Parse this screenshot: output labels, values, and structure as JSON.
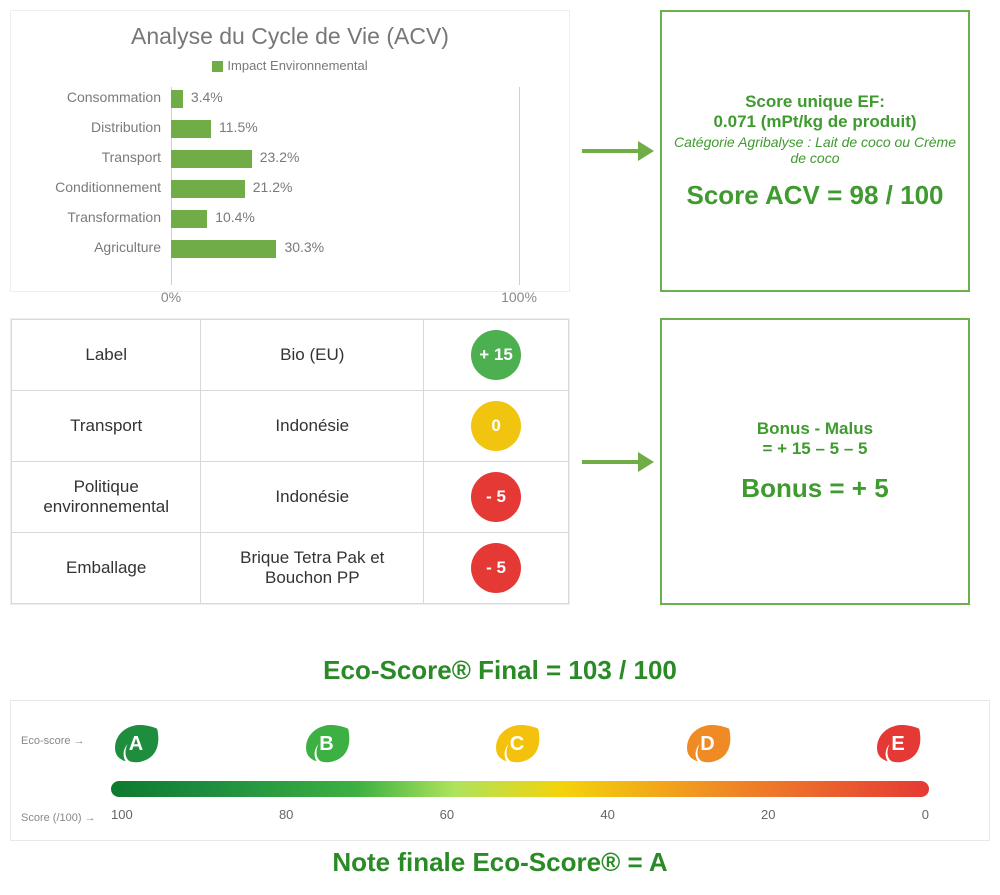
{
  "chart": {
    "title": "Analyse du Cycle de Vie (ACV)",
    "legend_label": "Impact Environnemental",
    "bar_color": "#70ad47",
    "label_color": "#7a7a7a",
    "xmin_label": "0%",
    "xmax_label": "100%",
    "xlim": [
      0,
      100
    ],
    "bars": [
      {
        "label": "Consommation",
        "value": 3.4,
        "value_label": "3.4%"
      },
      {
        "label": "Distribution",
        "value": 11.5,
        "value_label": "11.5%"
      },
      {
        "label": "Transport",
        "value": 23.2,
        "value_label": "23.2%"
      },
      {
        "label": "Conditionnement",
        "value": 21.2,
        "value_label": "21.2%"
      },
      {
        "label": "Transformation",
        "value": 10.4,
        "value_label": "10.4%"
      },
      {
        "label": "Agriculture",
        "value": 30.3,
        "value_label": "30.3%"
      }
    ]
  },
  "score_box": {
    "line1": "Score unique EF:",
    "line2": "0.071 (mPt/kg de produit)",
    "line3": "Catégorie Agribalyse : Lait de coco ou Crème de coco",
    "big": "Score ACV = 98 / 100",
    "border_color": "#6ab04c",
    "text_color": "#3f9a2f"
  },
  "criteria": {
    "rows": [
      {
        "name": "Label",
        "value": "Bio (EU)",
        "score_label": "+ 15",
        "chip_color": "#4caf50"
      },
      {
        "name": "Transport",
        "value": "Indonésie",
        "score_label": "0",
        "chip_color": "#f1c40f"
      },
      {
        "name": "Politique environnemental",
        "value": "Indonésie",
        "score_label": "- 5",
        "chip_color": "#e53935"
      },
      {
        "name": "Emballage",
        "value": "Brique Tetra Pak et Bouchon PP",
        "score_label": "- 5",
        "chip_color": "#e53935"
      }
    ]
  },
  "bonus_box": {
    "l1": "Bonus - Malus",
    "l2": "= + 15 – 5 – 5",
    "big": "Bonus = + 5"
  },
  "final": {
    "title": "Eco-Score® Final = 103 / 100",
    "note": "Note finale Eco-Score® = A",
    "row1_label": "Eco-score →",
    "row2_label": "Score (/100) →",
    "leaves": [
      {
        "letter": "A",
        "color": "#1e8e3e"
      },
      {
        "letter": "B",
        "color": "#3cb043"
      },
      {
        "letter": "C",
        "color": "#f4c20d"
      },
      {
        "letter": "D",
        "color": "#f08a24"
      },
      {
        "letter": "E",
        "color": "#e53935"
      }
    ],
    "gradient_css": "linear-gradient(to right,#0d7a2e 0%,#1e8e3e 12%,#3cb043 30%,#aee35c 42%,#f4d30b 55%,#f08a24 75%,#e53935 100%)",
    "ticks": [
      "100",
      "80",
      "60",
      "40",
      "20",
      "0"
    ]
  }
}
